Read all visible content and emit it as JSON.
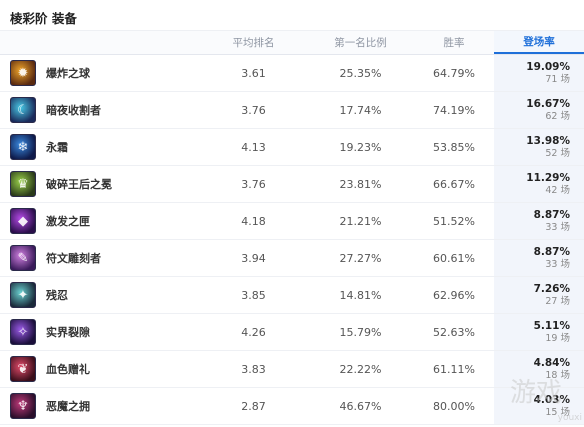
{
  "header": {
    "title": "棱彩阶 装备"
  },
  "columns": {
    "name": "",
    "avg_rank": "平均排名",
    "top1": "第一名比例",
    "win": "胜率",
    "pick_rate": "登场率"
  },
  "rows": [
    {
      "name": "爆炸之球",
      "avg": "3.61",
      "top1": "25.35%",
      "win": "64.79%",
      "rate": "19.09%",
      "count": "71 场",
      "icon": "explosion-orb-icon",
      "colors": [
        "#f0a52a",
        "#5a2a10"
      ]
    },
    {
      "name": "暗夜收割者",
      "avg": "3.76",
      "top1": "17.74%",
      "win": "74.19%",
      "rate": "16.67%",
      "count": "62 场",
      "icon": "night-harvester-icon",
      "colors": [
        "#48c9e6",
        "#1a2a5a"
      ]
    },
    {
      "name": "永霜",
      "avg": "4.13",
      "top1": "19.23%",
      "win": "53.85%",
      "rate": "13.98%",
      "count": "52 场",
      "icon": "everfrost-icon",
      "colors": [
        "#3a8ae0",
        "#0e1a4a"
      ]
    },
    {
      "name": "破碎王后之冕",
      "avg": "3.76",
      "top1": "23.81%",
      "win": "66.67%",
      "rate": "11.29%",
      "count": "42 场",
      "icon": "shattered-queen-crown-icon",
      "colors": [
        "#9ad14a",
        "#2a3a1a"
      ]
    },
    {
      "name": "激发之匣",
      "avg": "4.18",
      "top1": "21.21%",
      "win": "51.52%",
      "rate": "8.87%",
      "count": "33 场",
      "icon": "excitation-box-icon",
      "colors": [
        "#b44ae6",
        "#2a0e4a"
      ]
    },
    {
      "name": "符文雕刻者",
      "avg": "3.94",
      "top1": "27.27%",
      "win": "60.61%",
      "rate": "8.87%",
      "count": "33 场",
      "icon": "rune-carver-icon",
      "colors": [
        "#d080e0",
        "#3a1a5a"
      ]
    },
    {
      "name": "残忍",
      "avg": "3.85",
      "top1": "14.81%",
      "win": "62.96%",
      "rate": "7.26%",
      "count": "27 场",
      "icon": "cruelty-icon",
      "colors": [
        "#6ad0d0",
        "#1a2a3a"
      ]
    },
    {
      "name": "实界裂隙",
      "avg": "4.26",
      "top1": "15.79%",
      "win": "52.63%",
      "rate": "5.11%",
      "count": "19 场",
      "icon": "reality-fracture-icon",
      "colors": [
        "#9a5ae6",
        "#1a0e3a"
      ]
    },
    {
      "name": "血色赠礼",
      "avg": "3.83",
      "top1": "22.22%",
      "win": "61.11%",
      "rate": "4.84%",
      "count": "18 场",
      "icon": "crimson-gift-icon",
      "colors": [
        "#e04a6a",
        "#3a0e1a"
      ]
    },
    {
      "name": "恶魔之拥",
      "avg": "2.87",
      "top1": "46.67%",
      "win": "80.00%",
      "rate": "4.03%",
      "count": "15 场",
      "icon": "demonic-embrace-icon",
      "colors": [
        "#c03a7a",
        "#2a0e2a"
      ]
    }
  ],
  "watermark": {
    "text": "游戏",
    "sub": "youxi"
  }
}
